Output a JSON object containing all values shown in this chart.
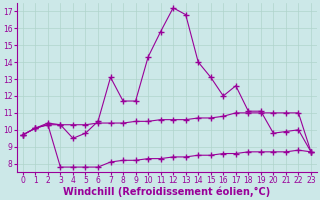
{
  "xlabel": "Windchill (Refroidissement éolien,°C)",
  "bg_color": "#cce8e8",
  "line_color": "#990099",
  "xlim": [
    -0.5,
    23.5
  ],
  "ylim": [
    7.5,
    17.5
  ],
  "xticks": [
    0,
    1,
    2,
    3,
    4,
    5,
    6,
    7,
    8,
    9,
    10,
    11,
    12,
    13,
    14,
    15,
    16,
    17,
    18,
    19,
    20,
    21,
    22,
    23
  ],
  "yticks": [
    8,
    9,
    10,
    11,
    12,
    13,
    14,
    15,
    16,
    17
  ],
  "grid_color": "#b0d4cc",
  "line1_x": [
    0,
    1,
    2,
    3,
    4,
    5,
    6,
    7,
    8,
    9,
    10,
    11,
    12,
    13,
    14,
    15,
    16,
    17,
    18,
    19,
    20,
    21,
    22,
    23
  ],
  "line1_y": [
    9.7,
    10.1,
    10.4,
    10.3,
    9.5,
    9.8,
    10.5,
    13.1,
    11.7,
    11.7,
    14.3,
    15.8,
    17.2,
    16.8,
    14.0,
    13.1,
    12.0,
    12.6,
    11.1,
    11.1,
    9.8,
    9.9,
    10.0,
    8.7
  ],
  "line2_x": [
    0,
    1,
    2,
    3,
    4,
    5,
    6,
    7,
    8,
    9,
    10,
    11,
    12,
    13,
    14,
    15,
    16,
    17,
    18,
    19,
    20,
    21,
    22,
    23
  ],
  "line2_y": [
    9.7,
    10.1,
    10.3,
    10.3,
    10.3,
    10.3,
    10.4,
    10.4,
    10.4,
    10.5,
    10.5,
    10.6,
    10.6,
    10.6,
    10.7,
    10.7,
    10.8,
    11.0,
    11.0,
    11.0,
    11.0,
    11.0,
    11.0,
    8.7
  ],
  "line3_x": [
    0,
    1,
    2,
    3,
    4,
    5,
    6,
    7,
    8,
    9,
    10,
    11,
    12,
    13,
    14,
    15,
    16,
    17,
    18,
    19,
    20,
    21,
    22,
    23
  ],
  "line3_y": [
    9.7,
    10.1,
    10.3,
    7.8,
    7.8,
    7.8,
    7.8,
    8.1,
    8.2,
    8.2,
    8.3,
    8.3,
    8.4,
    8.4,
    8.5,
    8.5,
    8.6,
    8.6,
    8.7,
    8.7,
    8.7,
    8.7,
    8.8,
    8.7
  ],
  "marker": "+",
  "markersize": 4,
  "linewidth": 0.8,
  "xlabel_fontsize": 7,
  "tick_fontsize": 5.5
}
